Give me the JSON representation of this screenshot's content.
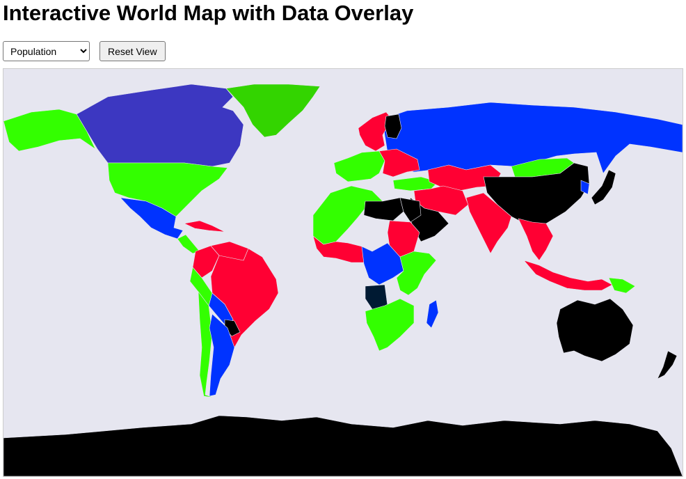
{
  "header": {
    "title": "Interactive World Map with Data Overlay"
  },
  "controls": {
    "metric_selected": "Population",
    "metric_options": [
      "Population"
    ],
    "reset_label": "Reset View"
  },
  "map": {
    "metric": "Population",
    "ocean_color": "#e6e6f0",
    "legend_colors": {
      "blue": "#0033ff",
      "green": "#33ff00",
      "red": "#ff0033",
      "black": "#000000",
      "indigo": "#3c37c1",
      "dark_green": "#33d400",
      "navy": "#001a33",
      "yellow": "#ffff00"
    },
    "regions": [
      {
        "name": "Canada",
        "color": "indigo"
      },
      {
        "name": "Alaska",
        "color": "green"
      },
      {
        "name": "Greenland",
        "color": "dark_green"
      },
      {
        "name": "United States",
        "color": "green"
      },
      {
        "name": "Mexico",
        "color": "blue"
      },
      {
        "name": "Central America",
        "color": "green"
      },
      {
        "name": "Caribbean",
        "color": "red"
      },
      {
        "name": "Colombia",
        "color": "red"
      },
      {
        "name": "Venezuela",
        "color": "red"
      },
      {
        "name": "Brazil",
        "color": "red"
      },
      {
        "name": "Peru",
        "color": "green"
      },
      {
        "name": "Bolivia",
        "color": "blue"
      },
      {
        "name": "Paraguay",
        "color": "black"
      },
      {
        "name": "Chile",
        "color": "green"
      },
      {
        "name": "Argentina",
        "color": "blue"
      },
      {
        "name": "Russia",
        "color": "blue"
      },
      {
        "name": "Scandinavia",
        "color": "red"
      },
      {
        "name": "Finland",
        "color": "black"
      },
      {
        "name": "Western Europe",
        "color": "green"
      },
      {
        "name": "Eastern Europe",
        "color": "red"
      },
      {
        "name": "Turkey",
        "color": "green"
      },
      {
        "name": "Kazakhstan",
        "color": "red"
      },
      {
        "name": "Mongolia",
        "color": "green"
      },
      {
        "name": "China",
        "color": "black"
      },
      {
        "name": "India",
        "color": "red"
      },
      {
        "name": "Middle East",
        "color": "red"
      },
      {
        "name": "Saudi Arabia",
        "color": "black"
      },
      {
        "name": "Southeast Asia",
        "color": "red"
      },
      {
        "name": "Japan",
        "color": "black"
      },
      {
        "name": "Korea",
        "color": "blue"
      },
      {
        "name": "Indonesia",
        "color": "red"
      },
      {
        "name": "Papua New Guinea",
        "color": "green"
      },
      {
        "name": "Australia",
        "color": "black"
      },
      {
        "name": "New Zealand",
        "color": "black"
      },
      {
        "name": "North Africa West",
        "color": "green"
      },
      {
        "name": "Libya",
        "color": "black"
      },
      {
        "name": "Egypt",
        "color": "black"
      },
      {
        "name": "Sudan",
        "color": "red"
      },
      {
        "name": "West Africa",
        "color": "red"
      },
      {
        "name": "Central Africa",
        "color": "blue"
      },
      {
        "name": "East Africa",
        "color": "green"
      },
      {
        "name": "Angola",
        "color": "navy"
      },
      {
        "name": "Southern Africa",
        "color": "green"
      },
      {
        "name": "Madagascar",
        "color": "blue"
      },
      {
        "name": "Antarctica",
        "color": "black"
      }
    ]
  }
}
